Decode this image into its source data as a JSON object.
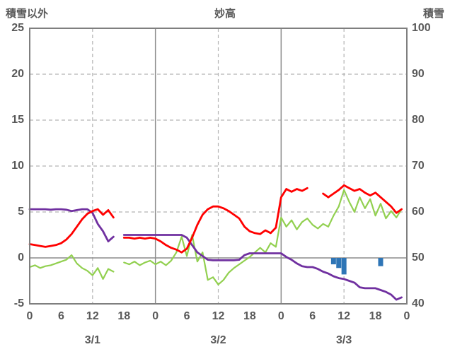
{
  "chart_data": {
    "type": "line",
    "title": "妙高",
    "left_axis": {
      "label": "積雪以外",
      "min": -5,
      "max": 25,
      "ticks": [
        25,
        20,
        15,
        10,
        5,
        0,
        -5
      ]
    },
    "right_axis": {
      "label": "積雪",
      "min": 40,
      "max": 100,
      "ticks": [
        100,
        90,
        80,
        70,
        60,
        50,
        40
      ]
    },
    "x_axis": {
      "unit": "hour",
      "min": 0,
      "max": 72,
      "hour_tick_labels": [
        "0",
        "6",
        "12",
        "18",
        "0",
        "6",
        "12",
        "18",
        "0",
        "6",
        "12",
        "18",
        "0"
      ],
      "date_labels": [
        {
          "label": "3/1",
          "hour": 12
        },
        {
          "label": "3/2",
          "hour": 36
        },
        {
          "label": "3/3",
          "hour": 60
        }
      ]
    },
    "series": [
      {
        "name": "green-line",
        "axis": "left",
        "color": "#92d050",
        "values": [
          -1.0,
          -0.8,
          -1.1,
          -0.9,
          -0.8,
          -0.6,
          -0.4,
          -0.2,
          0.3,
          -0.6,
          -1.1,
          -1.4,
          -1.9,
          -1.1,
          -2.3,
          -1.2,
          -1.5,
          null,
          -0.5,
          -0.7,
          -0.4,
          -0.8,
          -0.5,
          -0.3,
          -0.7,
          -0.4,
          -0.8,
          -0.3,
          0.6,
          2.3,
          0.2,
          2.5,
          -0.4,
          0.6,
          -2.4,
          -2.1,
          -2.9,
          -2.4,
          -1.6,
          -1.1,
          -0.7,
          -0.3,
          0.1,
          0.6,
          1.1,
          0.6,
          1.6,
          1.2,
          4.4,
          3.4,
          4.1,
          3.1,
          3.9,
          4.3,
          3.6,
          3.2,
          3.7,
          3.4,
          4.6,
          5.6,
          7.4,
          6.1,
          5.0,
          6.6,
          5.4,
          6.4,
          4.6,
          5.9,
          4.3,
          5.1,
          4.4,
          5.3
        ]
      },
      {
        "name": "purple-line",
        "axis": "right",
        "color": "#7030a0",
        "values": [
          60.6,
          60.6,
          60.6,
          60.6,
          60.5,
          60.6,
          60.6,
          60.5,
          60.2,
          60.4,
          60.6,
          60.6,
          59.8,
          57.4,
          55.8,
          53.6,
          54.6,
          null,
          55.0,
          55.0,
          55.0,
          55.0,
          55.0,
          55.0,
          55.0,
          55.0,
          55.0,
          55.0,
          55.0,
          55.0,
          54.4,
          52.8,
          51.2,
          50.4,
          49.6,
          49.5,
          49.5,
          49.5,
          49.5,
          49.5,
          49.6,
          50.6,
          51.0,
          51.0,
          51.0,
          51.0,
          51.0,
          51.0,
          51.0,
          50.2,
          49.6,
          48.8,
          48.2,
          48.0,
          48.0,
          47.6,
          47.0,
          46.6,
          46.0,
          45.6,
          45.4,
          45.0,
          44.6,
          43.6,
          43.4,
          43.4,
          43.4,
          43.0,
          42.6,
          42.0,
          40.9,
          41.4
        ]
      },
      {
        "name": "red-line",
        "axis": "left",
        "color": "#ff0000",
        "values": [
          1.5,
          1.4,
          1.3,
          1.2,
          1.3,
          1.4,
          1.6,
          2.0,
          2.6,
          3.4,
          4.2,
          4.8,
          5.1,
          5.3,
          4.7,
          5.2,
          4.4,
          null,
          2.2,
          2.2,
          2.1,
          2.2,
          2.1,
          2.2,
          2.1,
          1.8,
          1.4,
          1.1,
          0.9,
          0.6,
          1.0,
          2.2,
          3.6,
          4.7,
          5.3,
          5.6,
          5.6,
          5.4,
          5.1,
          4.7,
          4.3,
          3.4,
          2.9,
          2.7,
          2.6,
          3.0,
          2.7,
          3.3,
          6.6,
          7.5,
          7.2,
          7.5,
          7.3,
          7.6,
          null,
          null,
          7.0,
          6.6,
          7.0,
          7.4,
          7.9,
          7.6,
          7.3,
          7.5,
          7.1,
          6.8,
          7.1,
          6.6,
          6.1,
          5.6,
          4.9,
          5.3
        ]
      }
    ],
    "bars": {
      "name": "blue-bars",
      "axis": "left",
      "color": "#2e75b6",
      "points": [
        {
          "hour": 58,
          "value": -0.7
        },
        {
          "hour": 59,
          "value": -1.1
        },
        {
          "hour": 60,
          "value": -1.8
        },
        {
          "hour": 67,
          "value": -0.9
        }
      ]
    },
    "grid": {
      "zero_line": true,
      "h_dashed_ticks": [
        20,
        15,
        10,
        5
      ],
      "v_dashed_hours": [
        12,
        36,
        60
      ],
      "v_solid_hours": [
        24,
        48
      ]
    }
  }
}
